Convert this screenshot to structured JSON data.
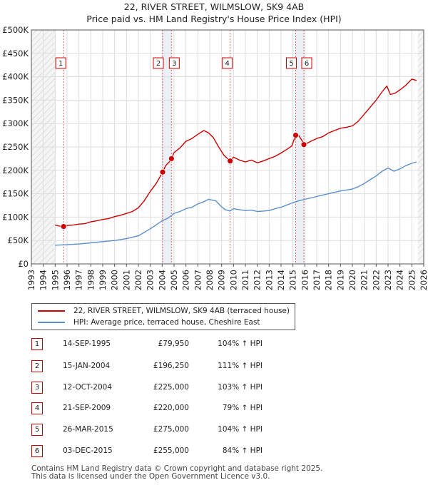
{
  "header": {
    "line1": "22, RIVER STREET, WILMSLOW, SK9 4AB",
    "line2": "Price paid vs. HM Land Registry's House Price Index (HPI)"
  },
  "chart_data": {
    "type": "line",
    "title": "Price paid vs. HM Land Registry's House Price Index (HPI)",
    "xlim": [
      1993,
      2026
    ],
    "ylim": [
      0,
      500000
    ],
    "y_ticks": [
      {
        "value": 0,
        "label": "£0"
      },
      {
        "value": 50000,
        "label": "£50K"
      },
      {
        "value": 100000,
        "label": "£100K"
      },
      {
        "value": 150000,
        "label": "£150K"
      },
      {
        "value": 200000,
        "label": "£200K"
      },
      {
        "value": 250000,
        "label": "£250K"
      },
      {
        "value": 300000,
        "label": "£300K"
      },
      {
        "value": 350000,
        "label": "£350K"
      },
      {
        "value": 400000,
        "label": "£400K"
      },
      {
        "value": 450000,
        "label": "£450K"
      },
      {
        "value": 500000,
        "label": "£500K"
      }
    ],
    "x_ticks": [
      "1993",
      "1994",
      "1995",
      "1996",
      "1997",
      "1998",
      "1999",
      "2000",
      "2001",
      "2002",
      "2003",
      "2004",
      "2005",
      "2006",
      "2007",
      "2008",
      "2009",
      "2010",
      "2011",
      "2012",
      "2013",
      "2014",
      "2015",
      "2016",
      "2017",
      "2018",
      "2019",
      "2020",
      "2021",
      "2022",
      "2023",
      "2024",
      "2025",
      "2026"
    ],
    "hatched_regions": [
      [
        1993,
        1995
      ],
      [
        2025.5,
        2026
      ]
    ],
    "series": [
      {
        "name": "22, RIVER STREET, WILMSLOW, SK9 4AB (terraced house)",
        "color": "#cc0000",
        "x": [
          1995.0,
          1995.5,
          1995.71,
          1996.0,
          1996.5,
          1997.0,
          1997.5,
          1998.0,
          1998.5,
          1999.0,
          1999.5,
          2000.0,
          2000.5,
          2001.0,
          2001.5,
          2002.0,
          2002.5,
          2003.0,
          2003.5,
          2004.04,
          2004.3,
          2004.6,
          2004.78,
          2005.0,
          2005.5,
          2006.0,
          2006.5,
          2007.0,
          2007.5,
          2007.9,
          2008.3,
          2008.8,
          2009.2,
          2009.5,
          2009.72,
          2010.0,
          2010.5,
          2011.0,
          2011.5,
          2012.0,
          2012.5,
          2013.0,
          2013.5,
          2014.0,
          2014.5,
          2014.9,
          2015.23,
          2015.4,
          2015.6,
          2015.8,
          2015.92,
          2016.2,
          2016.5,
          2017.0,
          2017.5,
          2018.0,
          2018.5,
          2019.0,
          2019.5,
          2020.0,
          2020.5,
          2021.0,
          2021.5,
          2022.0,
          2022.5,
          2022.9,
          2023.2,
          2023.6,
          2024.0,
          2024.5,
          2025.0,
          2025.4
        ],
        "values": [
          83000,
          80000,
          79950,
          82000,
          83000,
          85000,
          86000,
          90000,
          92000,
          95000,
          97000,
          101000,
          104000,
          108000,
          112000,
          120000,
          135000,
          155000,
          172000,
          196250,
          210000,
          218000,
          225000,
          238000,
          248000,
          262000,
          268000,
          277000,
          285000,
          280000,
          270000,
          248000,
          232000,
          225000,
          220000,
          228000,
          222000,
          218000,
          222000,
          216000,
          220000,
          225000,
          230000,
          237000,
          245000,
          252000,
          275000,
          278000,
          270000,
          262000,
          255000,
          258000,
          262000,
          268000,
          272000,
          280000,
          285000,
          290000,
          292000,
          295000,
          305000,
          320000,
          335000,
          350000,
          368000,
          380000,
          362000,
          365000,
          372000,
          382000,
          395000,
          392000
        ]
      },
      {
        "name": "HPI: Average price, terraced house, Cheshire East",
        "color": "#5b8fc9",
        "x": [
          1995.0,
          1996.0,
          1997.0,
          1998.0,
          1999.0,
          2000.0,
          2001.0,
          2002.0,
          2003.0,
          2004.0,
          2004.5,
          2005.0,
          2005.5,
          2006.0,
          2006.5,
          2007.0,
          2007.5,
          2007.9,
          2008.5,
          2009.0,
          2009.3,
          2009.7,
          2010.0,
          2010.5,
          2011.0,
          2011.5,
          2012.0,
          2012.5,
          2013.0,
          2013.5,
          2014.0,
          2014.5,
          2015.0,
          2015.5,
          2016.0,
          2016.5,
          2017.0,
          2017.5,
          2018.0,
          2018.5,
          2019.0,
          2019.5,
          2020.0,
          2020.5,
          2021.0,
          2021.5,
          2022.0,
          2022.5,
          2023.0,
          2023.5,
          2024.0,
          2024.5,
          2025.0,
          2025.4
        ],
        "values": [
          40000,
          41000,
          42500,
          45000,
          47500,
          50000,
          54000,
          60000,
          75000,
          92000,
          98000,
          108000,
          112000,
          118000,
          121000,
          128000,
          133000,
          138000,
          135000,
          122000,
          116000,
          113000,
          118000,
          116000,
          114000,
          115000,
          112000,
          113000,
          114000,
          118000,
          121000,
          126000,
          131000,
          135000,
          138000,
          141000,
          144000,
          147000,
          150000,
          153000,
          156000,
          158000,
          160000,
          165000,
          172000,
          180000,
          188000,
          198000,
          205000,
          198000,
          203000,
          210000,
          215000,
          218000
        ]
      }
    ],
    "sales": [
      {
        "label": "1",
        "x": 1995.71,
        "value": 79950
      },
      {
        "label": "2",
        "x": 2004.04,
        "value": 196250
      },
      {
        "label": "3",
        "x": 2004.78,
        "value": 225000
      },
      {
        "label": "4",
        "x": 2009.72,
        "value": 220000
      },
      {
        "label": "5",
        "x": 2015.23,
        "value": 275000
      },
      {
        "label": "6",
        "x": 2015.92,
        "value": 255000
      }
    ]
  },
  "legend": {
    "property": "22, RIVER STREET, WILMSLOW, SK9 4AB (terraced house)",
    "hpi": "HPI: Average price, terraced house, Cheshire East"
  },
  "transactions": [
    {
      "num": "1",
      "date": "14-SEP-1995",
      "price": "£79,950",
      "hpi": "104% ↑ HPI"
    },
    {
      "num": "2",
      "date": "15-JAN-2004",
      "price": "£196,250",
      "hpi": "111% ↑ HPI"
    },
    {
      "num": "3",
      "date": "12-OCT-2004",
      "price": "£225,000",
      "hpi": "103% ↑ HPI"
    },
    {
      "num": "4",
      "date": "21-SEP-2009",
      "price": "£220,000",
      "hpi": "79% ↑ HPI"
    },
    {
      "num": "5",
      "date": "26-MAR-2015",
      "price": "£275,000",
      "hpi": "104% ↑ HPI"
    },
    {
      "num": "6",
      "date": "03-DEC-2015",
      "price": "£255,000",
      "hpi": "84% ↑ HPI"
    }
  ],
  "footer": {
    "line1": "Contains HM Land Registry data © Crown copyright and database right 2025.",
    "line2": "This data is licensed under the Open Government Licence v3.0."
  }
}
